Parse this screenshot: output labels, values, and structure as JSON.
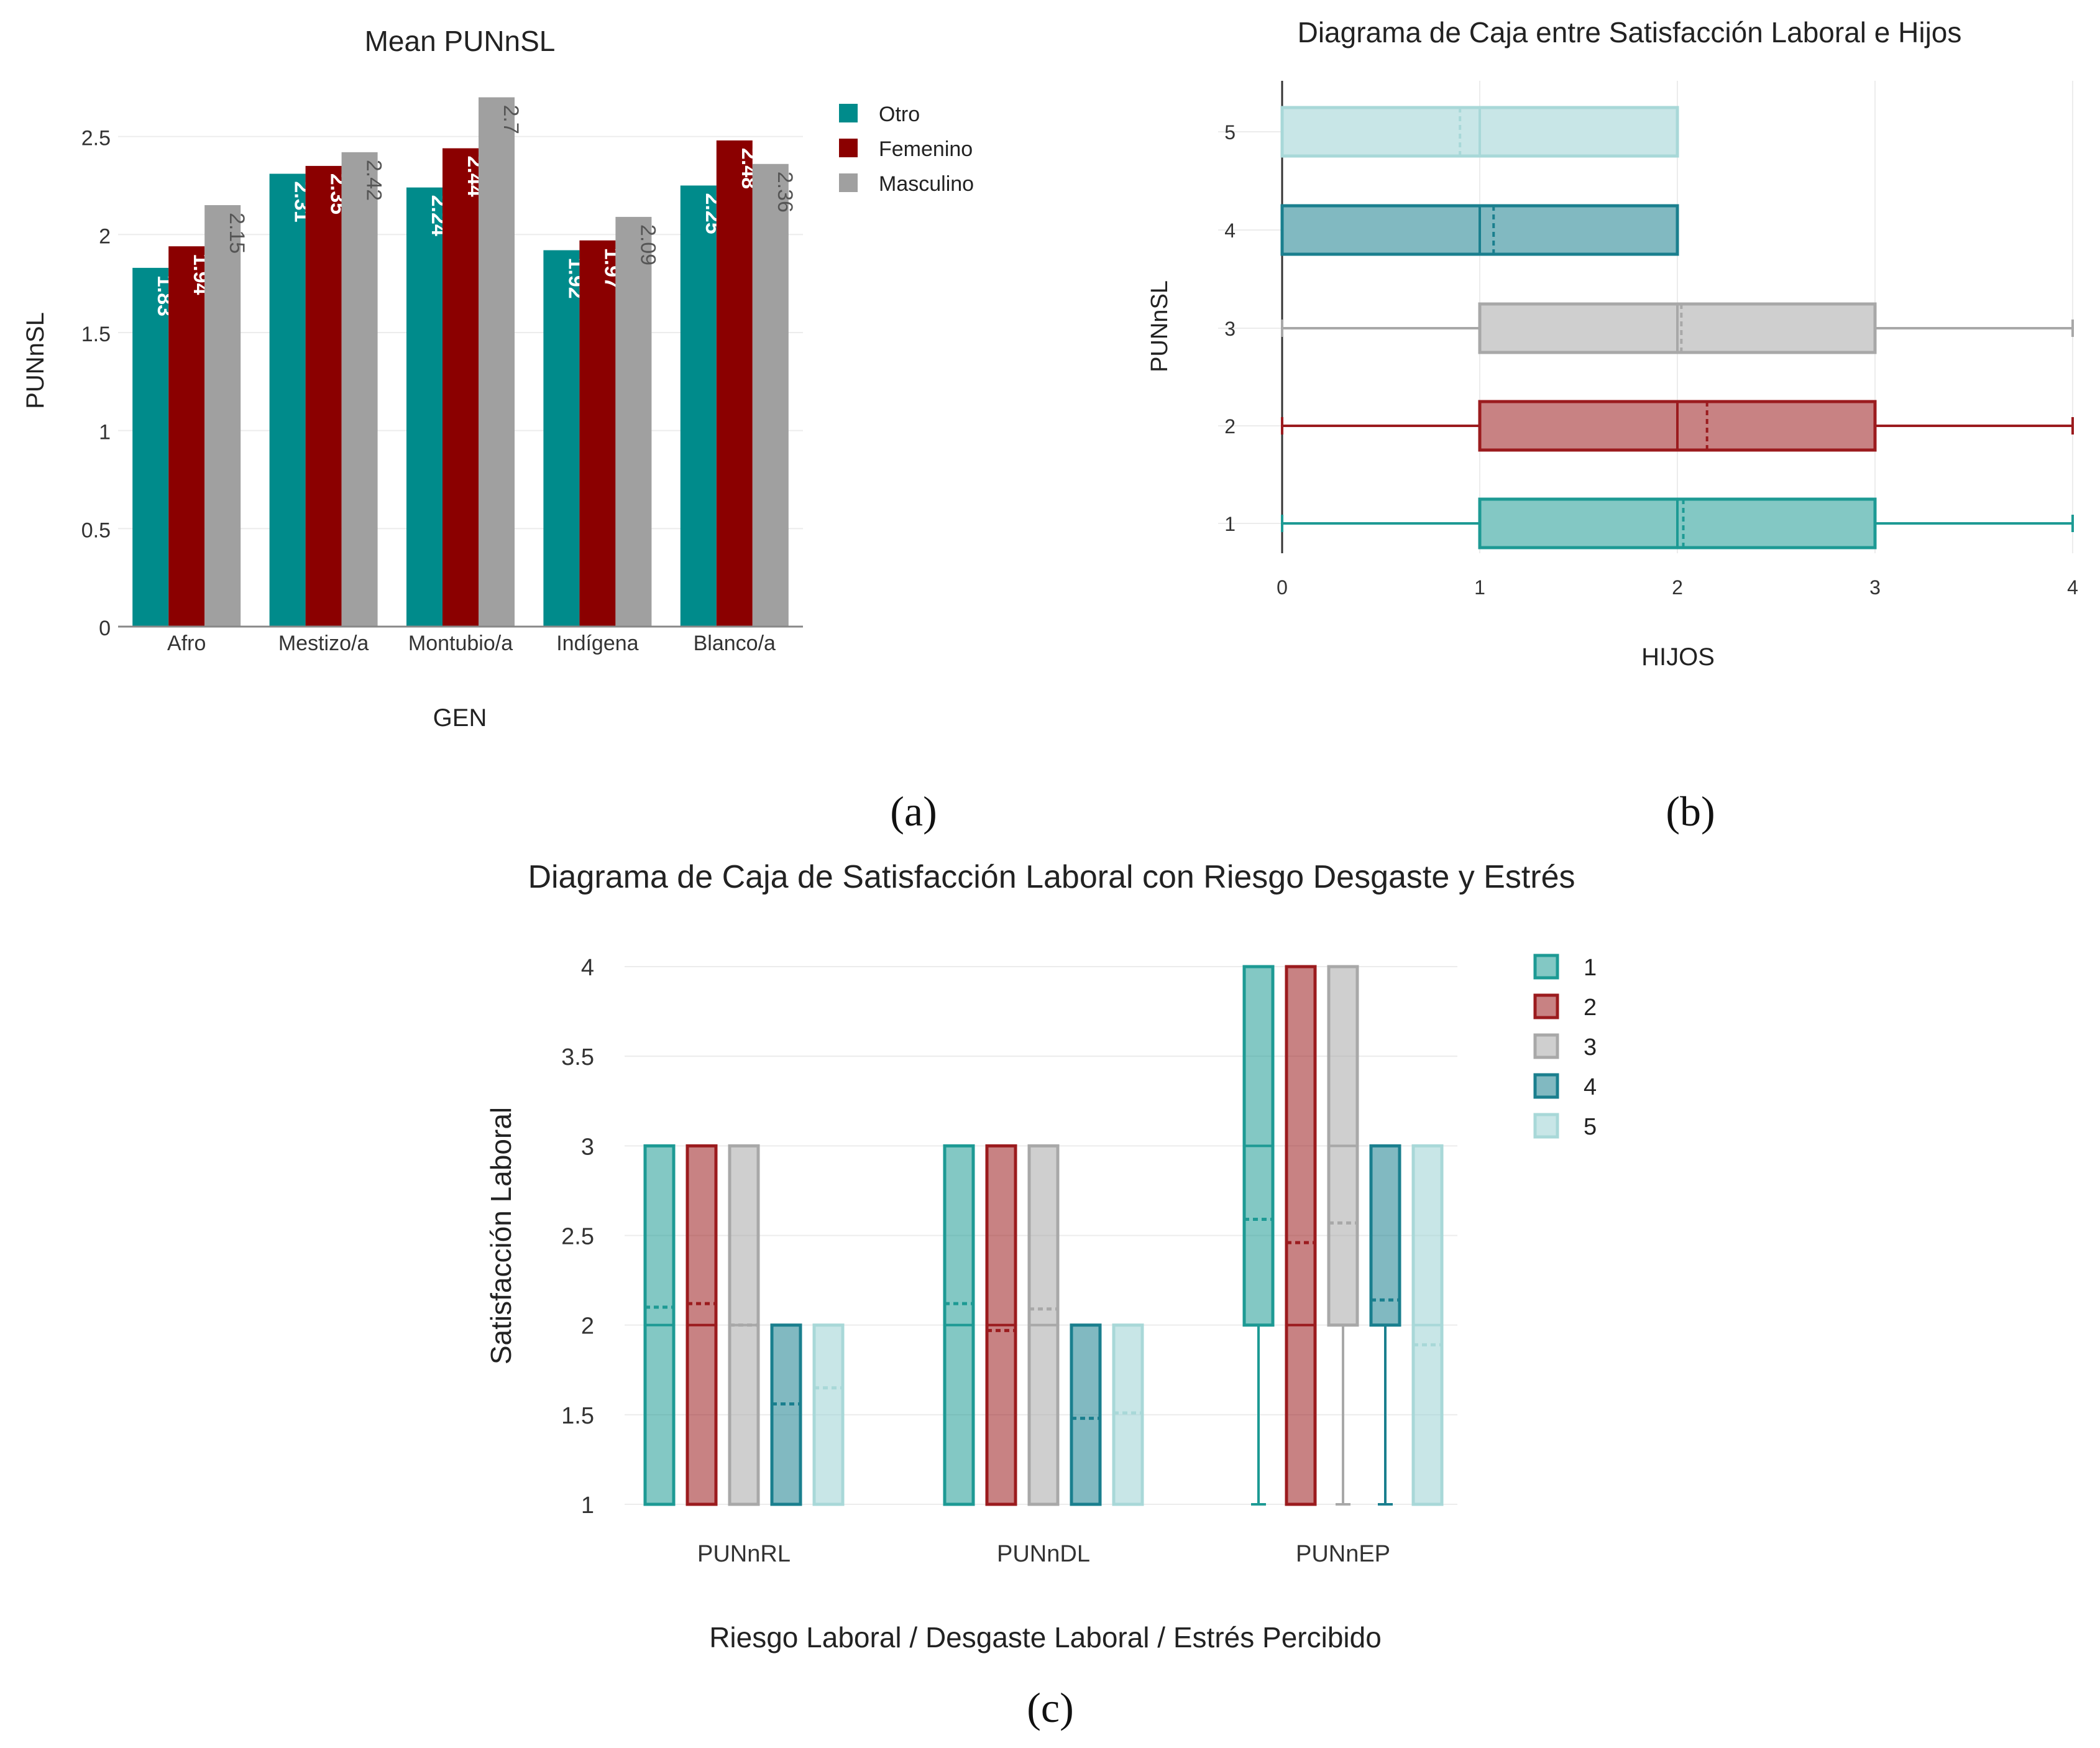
{
  "figure": {
    "panel_labels": [
      "(a)",
      "(b)",
      "(c)"
    ]
  },
  "colors": {
    "teal": "#168a86",
    "darkred": "#8b0000",
    "gray": "#9e9e9e",
    "box2": "#9b1b1e",
    "box4": "#1a7f8e",
    "box5": "#9ad2d4"
  },
  "chart_data": [
    {
      "type": "bar",
      "title": "Mean PUNnSL",
      "xlabel": "GEN",
      "ylabel": "PUNnSL",
      "ylim": [
        0,
        2.8
      ],
      "yticks": [
        "0",
        "0.5",
        "1",
        "1.5",
        "2",
        "2.5"
      ],
      "categories": [
        "Afro",
        "Mestizo/a",
        "Montubio/a",
        "Indígena",
        "Blanco/a"
      ],
      "series": [
        {
          "name": "Otro",
          "color": "#008b8b",
          "values": [
            1.83,
            2.31,
            2.24,
            1.92,
            2.25
          ],
          "labels": [
            "1.83",
            "2.31",
            "2.24",
            "1.92",
            "2.25"
          ]
        },
        {
          "name": "Femenino",
          "color": "#8b0000",
          "values": [
            1.94,
            2.35,
            2.44,
            1.97,
            2.48
          ],
          "labels": [
            "1.94",
            "2.35",
            "2.44",
            "1.97",
            "2.48"
          ]
        },
        {
          "name": "Masculino",
          "color": "#a0a0a0",
          "values": [
            2.15,
            2.42,
            2.7,
            2.09,
            2.36
          ],
          "labels": [
            "2.15",
            "2.42",
            "2.7",
            "2.09",
            "2.36"
          ]
        }
      ],
      "legend": "right"
    },
    {
      "type": "boxplot",
      "orientation": "horizontal",
      "title": "Diagrama de Caja entre Satisfacción Laboral e Hijos",
      "xlabel": "HIJOS",
      "ylabel": "PUNnSL",
      "xlim": [
        0,
        4
      ],
      "xticks": [
        "0",
        "1",
        "2",
        "3",
        "4"
      ],
      "groups": [
        {
          "name": "1",
          "color": "#1d9a94",
          "min": 0,
          "q1": 1,
          "median": 2,
          "mean": 2.03,
          "q3": 3,
          "max": 4
        },
        {
          "name": "2",
          "color": "#9b1b1e",
          "min": 0,
          "q1": 1,
          "median": 2,
          "mean": 2.15,
          "q3": 3,
          "max": 4
        },
        {
          "name": "3",
          "color": "#a8a8a8",
          "min": 0,
          "q1": 1,
          "median": 2,
          "mean": 2.02,
          "q3": 3,
          "max": 4
        },
        {
          "name": "4",
          "color": "#1a7f8e",
          "min": 0,
          "q1": 0,
          "median": 1,
          "mean": 1.07,
          "q3": 2,
          "max": 2
        },
        {
          "name": "5",
          "color": "#9ad2d4",
          "min": 0,
          "q1": 0,
          "median": 1,
          "mean": 0.9,
          "q3": 2,
          "max": 2
        }
      ]
    },
    {
      "type": "boxplot",
      "orientation": "vertical",
      "title": "Diagrama de Caja de Satisfacción Laboral con Riesgo Desgaste y Estrés",
      "xlabel": "Riesgo Laboral / Desgaste Laboral / Estrés Percibido",
      "ylabel": "Satisfacción Laboral",
      "ylim": [
        1,
        4
      ],
      "yticks": [
        "1",
        "1.5",
        "2",
        "2.5",
        "3",
        "3.5",
        "4"
      ],
      "categories": [
        "PUNnRL",
        "PUNnDL",
        "PUNnEP"
      ],
      "legend_entries": [
        "1",
        "2",
        "3",
        "4",
        "5"
      ],
      "group_colors": [
        "#1d9a94",
        "#9b1b1e",
        "#a8a8a8",
        "#1a7f8e",
        "#9ad2d4"
      ],
      "boxes": [
        [
          {
            "min": 1,
            "q1": 1,
            "median": 2,
            "mean": 2.1,
            "q3": 3,
            "max": 3
          },
          {
            "min": 1,
            "q1": 1,
            "median": 2,
            "mean": 2.12,
            "q3": 3,
            "max": 3
          },
          {
            "min": 1,
            "q1": 1,
            "median": 2,
            "mean": 2.0,
            "q3": 3,
            "max": 3
          },
          {
            "min": 1,
            "q1": 1,
            "median": 1,
            "mean": 1.56,
            "q3": 2,
            "max": 2
          },
          {
            "min": 1,
            "q1": 1,
            "median": 1,
            "mean": 1.65,
            "q3": 2,
            "max": 2
          }
        ],
        [
          {
            "min": 1,
            "q1": 1,
            "median": 2,
            "mean": 2.12,
            "q3": 3,
            "max": 3
          },
          {
            "min": 1,
            "q1": 1,
            "median": 2,
            "mean": 1.97,
            "q3": 3,
            "max": 3
          },
          {
            "min": 1,
            "q1": 1,
            "median": 2,
            "mean": 2.09,
            "q3": 3,
            "max": 3
          },
          {
            "min": 1,
            "q1": 1,
            "median": 1,
            "mean": 1.48,
            "q3": 2,
            "max": 2
          },
          {
            "min": 1,
            "q1": 1,
            "median": 1,
            "mean": 1.51,
            "q3": 2,
            "max": 2
          }
        ],
        [
          {
            "min": 1,
            "q1": 2,
            "median": 3,
            "mean": 2.59,
            "q3": 4,
            "max": 4
          },
          {
            "min": 1,
            "q1": 1,
            "median": 2,
            "mean": 2.46,
            "q3": 4,
            "max": 4
          },
          {
            "min": 1,
            "q1": 2,
            "median": 3,
            "mean": 2.57,
            "q3": 4,
            "max": 4
          },
          {
            "min": 1,
            "q1": 2,
            "median": 2,
            "mean": 2.14,
            "q3": 3,
            "max": 3
          },
          {
            "min": 1,
            "q1": 1,
            "median": 2,
            "mean": 1.89,
            "q3": 3,
            "max": 3
          }
        ]
      ]
    }
  ]
}
